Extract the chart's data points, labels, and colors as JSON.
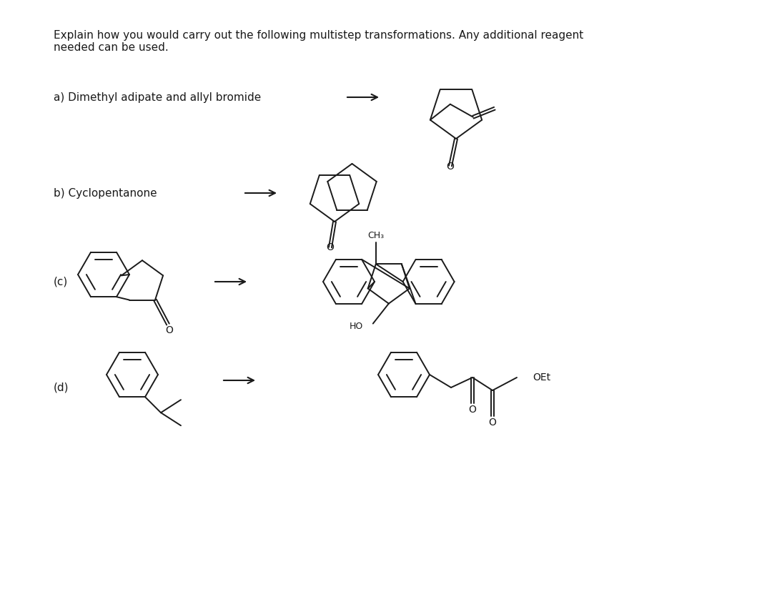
{
  "background_color": "#ffffff",
  "line_color": "#1a1a1a",
  "text_color": "#1a1a1a",
  "figsize": [
    10.8,
    8.42
  ],
  "dpi": 100,
  "title": "Explain how you would carry out the following multistep transformations. Any additional reagent\nneeded can be used.",
  "label_a": "a) Dimethyl adipate and allyl bromide",
  "label_b": "b) Cyclopentanone",
  "label_c": "(c)",
  "label_d": "(d)"
}
